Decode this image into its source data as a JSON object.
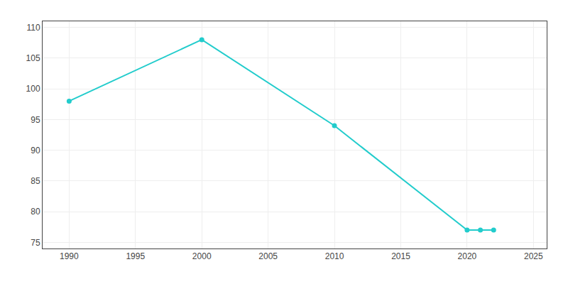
{
  "chart_data": {
    "type": "line",
    "x": [
      1990,
      2000,
      2010,
      2020,
      2021,
      2022
    ],
    "values": [
      98,
      108,
      94,
      77,
      77,
      77
    ],
    "color": "#22cccc",
    "marker": "circle",
    "xlim": [
      1988,
      2026
    ],
    "ylim": [
      74,
      111
    ],
    "xticks": [
      1990,
      1995,
      2000,
      2005,
      2010,
      2015,
      2020,
      2025
    ],
    "yticks": [
      75,
      80,
      85,
      90,
      95,
      100,
      105,
      110
    ],
    "grid": true
  }
}
